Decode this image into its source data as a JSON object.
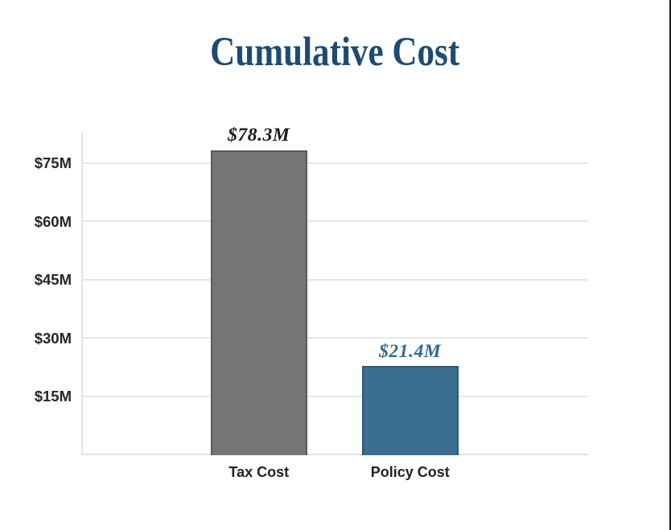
{
  "title": {
    "text": "Cumulative Cost",
    "color": "#1d4b73"
  },
  "chart_data": {
    "type": "bar",
    "title": "Cumulative Cost",
    "categories": [
      "Tax Cost",
      "Policy Cost"
    ],
    "values": [
      78.3,
      21.4
    ],
    "value_labels": [
      "$78.3M",
      "$21.4M"
    ],
    "bar_colors": [
      "#747676",
      "#3c6e92"
    ],
    "bar_border_colors": [
      "#5a5a5a",
      "#2a5878"
    ],
    "value_label_colors": [
      "#1a1a1a",
      "#336990"
    ],
    "y_ticks": [
      {
        "label": "$75M",
        "value": 75
      },
      {
        "label": "$60M",
        "value": 60
      },
      {
        "label": "$45M",
        "value": 45
      },
      {
        "label": "$30M",
        "value": 30
      },
      {
        "label": "$15M",
        "value": 15
      }
    ],
    "xlabel": "",
    "ylabel": "",
    "ylim": [
      0,
      83
    ],
    "grid": true,
    "legend": false,
    "gridline_color": "#e7e7e7",
    "background_color": "#ffffff"
  }
}
